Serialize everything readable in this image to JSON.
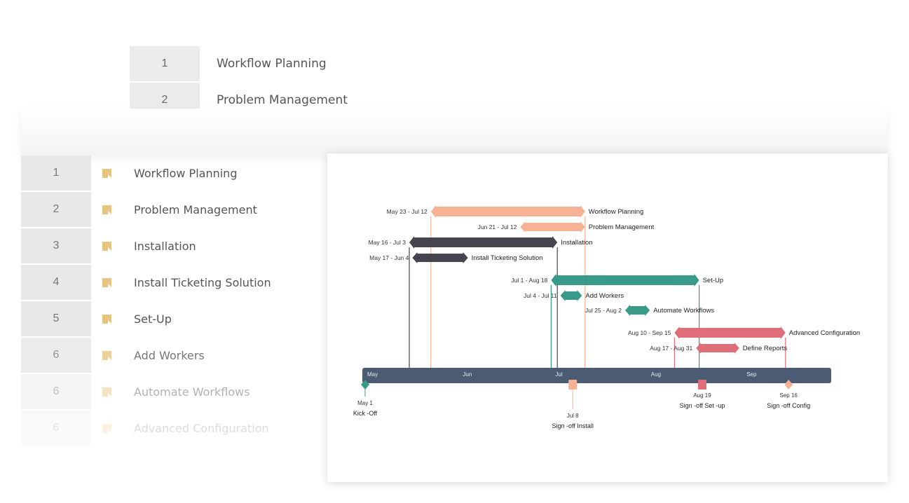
{
  "background_list": [
    {
      "num": "1",
      "label": "Workflow Planning"
    },
    {
      "num": "2",
      "label": "Problem Management"
    }
  ],
  "task_list": [
    {
      "num": "1",
      "label": "Workflow Planning"
    },
    {
      "num": "2",
      "label": "Problem Management"
    },
    {
      "num": "3",
      "label": "Installation"
    },
    {
      "num": "4",
      "label": "Install Ticketing Solution"
    },
    {
      "num": "5",
      "label": "Set-Up"
    },
    {
      "num": "6",
      "label": "Add Workers"
    },
    {
      "num": "6",
      "label": "Automate Workflows"
    },
    {
      "num": "6",
      "label": "Advanced Configuration"
    }
  ],
  "colors": {
    "salmon": "#f7b296",
    "dark": "#46444f",
    "teal": "#3a9a8a",
    "red": "#e06e78",
    "axis": "#4b5b73",
    "icon": "#e8c57e"
  },
  "chart_data": {
    "type": "gantt",
    "year_start": "May 1",
    "months": [
      {
        "label": "May",
        "day": 0
      },
      {
        "label": "Jun",
        "day": 31
      },
      {
        "label": "Jul",
        "day": 61
      },
      {
        "label": "Aug",
        "day": 92
      },
      {
        "label": "Sep",
        "day": 123
      }
    ],
    "axis_end_day": 152,
    "tasks": [
      {
        "name": "Workflow Planning",
        "dates": "May 23 - Jul 12",
        "start": 22,
        "end": 72,
        "color": "salmon",
        "main": true
      },
      {
        "name": "Problem Management",
        "dates": "Jun 21 - Jul 12",
        "start": 51,
        "end": 72,
        "color": "salmon",
        "main": false
      },
      {
        "name": "Installation",
        "dates": "May 16 - Jul 3",
        "start": 15,
        "end": 63,
        "color": "dark",
        "main": true
      },
      {
        "name": "Install Ticketing Solution",
        "dates": "May 17 - Jun 4",
        "start": 16,
        "end": 34,
        "color": "dark",
        "main": false
      },
      {
        "name": "Set-Up",
        "dates": "Jul 1 - Aug 18",
        "start": 61,
        "end": 109,
        "color": "teal",
        "main": true
      },
      {
        "name": "Add Workers",
        "dates": "Jul 4 - Jul 11",
        "start": 64,
        "end": 71,
        "color": "teal",
        "main": false
      },
      {
        "name": "Automate Workflows",
        "dates": "Jul 25 - Aug 2",
        "start": 85,
        "end": 93,
        "color": "teal",
        "main": false
      },
      {
        "name": "Advanced Configuration",
        "dates": "Aug 10 - Sep 15",
        "start": 101,
        "end": 137,
        "color": "red",
        "main": true
      },
      {
        "name": "Define Reports",
        "dates": "Aug 17 - Aug 31",
        "start": 108,
        "end": 122,
        "color": "red",
        "main": false
      }
    ],
    "milestones": [
      {
        "name": "Kick -Off",
        "date": "May 1",
        "day": 0,
        "shape": "diamond",
        "color": "teal",
        "level": 2
      },
      {
        "name": "Sign -off Install",
        "date": "Jul 8",
        "day": 68,
        "shape": "square",
        "color": "salmon",
        "level": 3
      },
      {
        "name": "Sign -off Set -up",
        "date": "Aug 19",
        "day": 110,
        "shape": "square",
        "color": "red",
        "level": 1
      },
      {
        "name": "Sign -off Config",
        "date": "Sep 16",
        "day": 138,
        "shape": "diamond",
        "color": "salmon",
        "level": 1
      }
    ]
  }
}
